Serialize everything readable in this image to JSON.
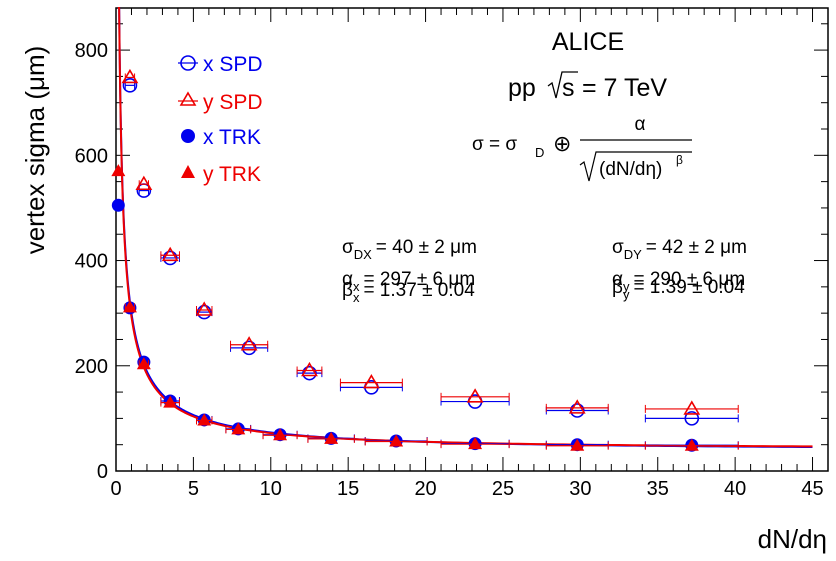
{
  "chart_data": {
    "type": "scatter",
    "xlabel": "dN/dη",
    "ylabel": "vertex sigma (μm)",
    "xlim": [
      0,
      46
    ],
    "ylim": [
      0,
      880
    ],
    "x_ticks": [
      0,
      5,
      10,
      15,
      20,
      25,
      30,
      35,
      40,
      45
    ],
    "y_ticks": [
      0,
      200,
      400,
      600,
      800
    ],
    "grid": false,
    "legend_position": "top-left",
    "series": [
      {
        "name": "x SPD",
        "marker": "open-circle",
        "color": "#0000ee",
        "points": [
          {
            "x": 0.9,
            "y": 733,
            "xerr": 0.3
          },
          {
            "x": 1.8,
            "y": 533,
            "xerr": 0.3
          },
          {
            "x": 3.5,
            "y": 405,
            "xerr": 0.6
          },
          {
            "x": 5.7,
            "y": 302,
            "xerr": 0.5
          },
          {
            "x": 8.6,
            "y": 234,
            "xerr": 1.2
          },
          {
            "x": 12.5,
            "y": 186,
            "xerr": 0.8
          },
          {
            "x": 16.5,
            "y": 159,
            "xerr": 2.0
          },
          {
            "x": 23.2,
            "y": 132,
            "xerr": 2.2
          },
          {
            "x": 29.8,
            "y": 115,
            "xerr": 2.0
          },
          {
            "x": 37.2,
            "y": 100,
            "xerr": 3.0
          }
        ]
      },
      {
        "name": "y SPD",
        "marker": "open-triangle",
        "color": "#ee0000",
        "points": [
          {
            "x": 0.9,
            "y": 748,
            "xerr": 0.3
          },
          {
            "x": 1.8,
            "y": 545,
            "xerr": 0.3
          },
          {
            "x": 3.5,
            "y": 410,
            "xerr": 0.6
          },
          {
            "x": 5.7,
            "y": 306,
            "xerr": 0.5
          },
          {
            "x": 8.6,
            "y": 240,
            "xerr": 1.2
          },
          {
            "x": 12.5,
            "y": 191,
            "xerr": 0.8
          },
          {
            "x": 16.5,
            "y": 168,
            "xerr": 2.0
          },
          {
            "x": 23.2,
            "y": 141,
            "xerr": 2.2
          },
          {
            "x": 29.8,
            "y": 120,
            "xerr": 2.0
          },
          {
            "x": 37.2,
            "y": 118,
            "xerr": 3.0
          }
        ]
      },
      {
        "name": "x TRK",
        "marker": "filled-circle",
        "color": "#0000ee",
        "points": [
          {
            "x": 0.15,
            "y": 505,
            "xerr": 0.1
          },
          {
            "x": 0.9,
            "y": 310,
            "xerr": 0.3
          },
          {
            "x": 1.8,
            "y": 207,
            "xerr": 0.3
          },
          {
            "x": 3.5,
            "y": 133,
            "xerr": 0.6
          },
          {
            "x": 5.7,
            "y": 97,
            "xerr": 0.5
          },
          {
            "x": 7.9,
            "y": 80,
            "xerr": 0.8
          },
          {
            "x": 10.6,
            "y": 69,
            "xerr": 1.1
          },
          {
            "x": 13.9,
            "y": 62,
            "xerr": 1.5
          },
          {
            "x": 18.1,
            "y": 57,
            "xerr": 2.0
          },
          {
            "x": 23.2,
            "y": 52,
            "xerr": 2.2
          },
          {
            "x": 29.8,
            "y": 50,
            "xerr": 2.0
          },
          {
            "x": 37.2,
            "y": 49,
            "xerr": 3.0
          }
        ]
      },
      {
        "name": "y TRK",
        "marker": "filled-triangle",
        "color": "#ee0000",
        "points": [
          {
            "x": 0.15,
            "y": 570,
            "xerr": 0.1
          },
          {
            "x": 0.9,
            "y": 311,
            "xerr": 0.3
          },
          {
            "x": 1.8,
            "y": 203,
            "xerr": 0.3
          },
          {
            "x": 3.5,
            "y": 130,
            "xerr": 0.6
          },
          {
            "x": 5.7,
            "y": 96,
            "xerr": 0.5
          },
          {
            "x": 7.9,
            "y": 79,
            "xerr": 0.8
          },
          {
            "x": 10.6,
            "y": 68,
            "xerr": 1.1
          },
          {
            "x": 13.9,
            "y": 61,
            "xerr": 1.5
          },
          {
            "x": 18.1,
            "y": 56,
            "xerr": 2.0
          },
          {
            "x": 23.2,
            "y": 51,
            "xerr": 2.2
          },
          {
            "x": 29.8,
            "y": 48,
            "xerr": 2.0
          },
          {
            "x": 37.2,
            "y": 48,
            "xerr": 3.0
          }
        ]
      }
    ],
    "fits": [
      {
        "axis": "x",
        "color": "#0000ee",
        "sigma_d": 40,
        "alpha": 297,
        "beta": 1.37
      },
      {
        "axis": "y",
        "color": "#ee0000",
        "sigma_d": 42,
        "alpha": 290,
        "beta": 1.39
      }
    ],
    "annotations": {
      "experiment": "ALICE",
      "collision": "pp",
      "sqrt_s": "s",
      "energy": "= 7 TeV",
      "formula_lhs": "σ = σ",
      "formula_sub": "D",
      "formula_oplus": "⊕",
      "formula_num": "α",
      "formula_den": "(dN/dη)",
      "formula_exp": "β",
      "fit_x": {
        "sigma_sym": "σ",
        "sigma_sub": "DX",
        "sigma_val": "= 40 ± 2 μm",
        "alpha_sym": "α",
        "alpha_sub": "x",
        "alpha_val": "= 297 ± 6 μm",
        "beta_sym": "β",
        "beta_sub": "x",
        "beta_val": "= 1.37 ± 0.04"
      },
      "fit_y": {
        "sigma_sym": "σ",
        "sigma_sub": "DY",
        "sigma_val": "= 42 ± 2 μm",
        "alpha_sym": "α",
        "alpha_sub": "y",
        "alpha_val": "= 290 ± 6 μm",
        "beta_sym": "β",
        "beta_sub": "y",
        "beta_val": "= 1.39 ± 0.04"
      }
    }
  }
}
